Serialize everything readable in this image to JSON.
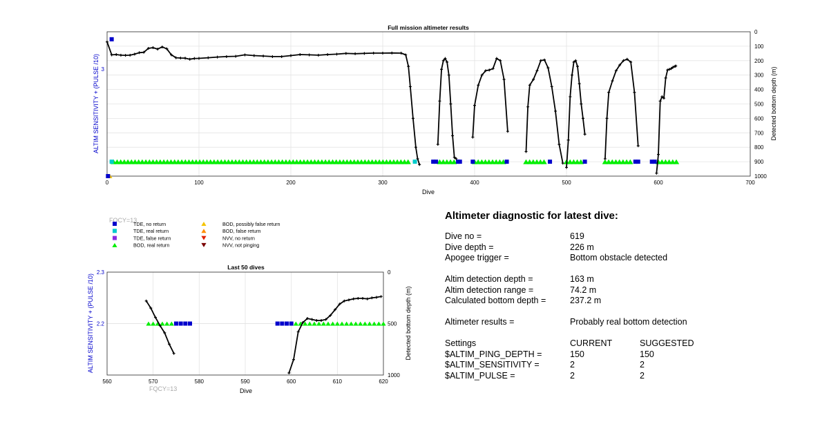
{
  "colors": {
    "axis_blue": "#0000cc",
    "tde_no_return": "#0000cc",
    "tde_real_return": "#00cccc",
    "tde_false_return": "#8a2be2",
    "bod_real_return": "#00ee00",
    "bod_possibly_false": "#f4c400",
    "bod_false_return": "#ff8c00",
    "nvv_no_return": "#e02000",
    "nvv_not_pinging": "#7a0000",
    "fqcy_text": "#a9a9a9"
  },
  "chart_data": [
    {
      "id": "full-mission",
      "type": "line",
      "title": "Full mission altimeter results",
      "xlabel": "Dive",
      "ylabel": "ALTIM SENSITIVITY + (PULSE /10)",
      "y2label": "Detected bottom depth (m)",
      "xlim": [
        0,
        700
      ],
      "ylim_right": [
        1000,
        0
      ],
      "xticks": [
        "0",
        "100",
        "200",
        "300",
        "400",
        "500",
        "600",
        "700"
      ],
      "yticks_left": [
        "3"
      ],
      "yticks_right": [
        "0",
        "100",
        "200",
        "300",
        "400",
        "500",
        "600",
        "700",
        "800",
        "900",
        "1000"
      ],
      "grid": true,
      "series": [
        {
          "role": "depth_segment",
          "x": [
            0,
            5,
            10,
            15,
            20,
            25,
            30,
            35,
            40,
            45,
            50,
            55,
            60,
            65,
            70,
            75,
            80,
            85,
            90,
            95,
            100,
            110,
            120,
            130,
            140,
            150,
            160,
            170,
            180,
            190,
            200,
            210,
            220,
            230,
            240,
            250,
            260,
            270,
            280,
            290,
            300,
            310,
            320,
            325,
            328,
            330,
            333,
            336,
            338,
            340
          ],
          "y": [
            70,
            160,
            158,
            162,
            163,
            162,
            155,
            145,
            142,
            115,
            110,
            120,
            105,
            118,
            160,
            180,
            182,
            183,
            190,
            185,
            184,
            180,
            175,
            172,
            170,
            160,
            165,
            168,
            172,
            172,
            165,
            158,
            160,
            162,
            158,
            155,
            150,
            152,
            150,
            148,
            148,
            147,
            148,
            160,
            240,
            380,
            600,
            800,
            880,
            920
          ]
        },
        {
          "role": "depth_segment",
          "x": [
            360,
            362,
            364,
            366,
            368,
            370,
            372,
            374,
            376,
            378,
            380
          ],
          "y": [
            780,
            480,
            260,
            200,
            185,
            210,
            300,
            500,
            720,
            870,
            880
          ]
        },
        {
          "role": "depth_segment",
          "x": [
            398,
            400,
            404,
            408,
            412,
            416,
            420,
            424,
            428,
            432,
            436
          ],
          "y": [
            730,
            510,
            370,
            300,
            270,
            265,
            255,
            185,
            200,
            330,
            690
          ]
        },
        {
          "role": "depth_segment",
          "x": [
            456,
            458,
            460,
            464,
            468,
            472,
            476,
            480,
            484,
            488,
            492,
            496
          ],
          "y": [
            830,
            520,
            370,
            330,
            270,
            200,
            195,
            250,
            380,
            550,
            780,
            910
          ]
        },
        {
          "role": "depth_segment",
          "x": [
            500,
            502,
            504,
            506,
            508,
            510,
            512,
            514,
            516,
            518,
            520
          ],
          "y": [
            940,
            750,
            450,
            300,
            210,
            200,
            240,
            360,
            500,
            600,
            710
          ]
        },
        {
          "role": "depth_segment",
          "x": [
            542,
            544,
            546,
            550,
            554,
            558,
            562,
            566,
            570,
            574,
            578
          ],
          "y": [
            880,
            600,
            420,
            340,
            270,
            230,
            200,
            190,
            210,
            420,
            790
          ]
        },
        {
          "role": "depth_segment",
          "x": [
            598,
            600,
            602,
            604,
            606,
            608,
            610,
            612,
            614,
            616,
            618,
            619
          ],
          "y": [
            980,
            850,
            480,
            450,
            460,
            320,
            265,
            260,
            255,
            245,
            240,
            237
          ]
        }
      ],
      "markers": [
        {
          "type": "TDE, no return",
          "x": [
            5
          ],
          "yval": 3.28
        },
        {
          "type": "BOD, possibly false return",
          "x": [
            3
          ],
          "yval": 2.0
        },
        {
          "type": "TDE, no return",
          "x": [
            1
          ],
          "yval": 2.0
        },
        {
          "type": "BOD, real return",
          "x_range": [
            7,
            330
          ],
          "depth": 900
        },
        {
          "type": "BOD, real return",
          "x_range": [
            362,
            380
          ],
          "depth": 900
        },
        {
          "type": "BOD, real return",
          "x_range": [
            400,
            432
          ],
          "depth": 900
        },
        {
          "type": "BOD, real return",
          "x_range": [
            456,
            478
          ],
          "depth": 900
        },
        {
          "type": "BOD, real return",
          "x_range": [
            500,
            518
          ],
          "depth": 900
        },
        {
          "type": "BOD, real return",
          "x_range": [
            542,
            572
          ],
          "depth": 900
        },
        {
          "type": "BOD, real return",
          "x_range": [
            600,
            620
          ],
          "depth": 900
        },
        {
          "type": "TDE, no return",
          "x": [
            355,
            358,
            382,
            384,
            398,
            435,
            482,
            520,
            575,
            578,
            593,
            596
          ],
          "depth": 900
        },
        {
          "type": "TDE, real return",
          "x": [
            5,
            335
          ],
          "depth": 900
        }
      ]
    },
    {
      "id": "last-50",
      "type": "line",
      "title": "Last 50 dives",
      "xlabel": "Dive",
      "ylabel": "ALTIM SENSITIVITY + (PULSE /10)",
      "y2label": "Detected bottom depth (m)",
      "xlim": [
        560,
        620
      ],
      "ylim": [
        2.1,
        2.3
      ],
      "ylim_right": [
        1000,
        0
      ],
      "xticks": [
        "560",
        "570",
        "580",
        "590",
        "600",
        "610",
        "620"
      ],
      "yticks_left": [
        "2.3",
        "2.2"
      ],
      "yticks_right": [
        "0",
        "500",
        "1000"
      ],
      "grid": true,
      "series": [
        {
          "role": "depth_segment",
          "x": [
            568.5,
            569.5,
            570.5,
            571.5,
            572.5,
            573.5,
            574.5
          ],
          "y": [
            280,
            350,
            440,
            520,
            590,
            700,
            790
          ]
        },
        {
          "role": "depth_segment",
          "x": [
            599.5,
            600.5,
            601.5,
            602.5,
            603.5,
            604.5,
            605.5,
            606.5,
            607.5,
            608.5,
            609.5,
            610.5,
            611.5,
            612.5,
            613.5,
            614.5,
            615.5,
            616.5,
            617.5,
            618.5,
            619.5
          ],
          "y": [
            980,
            850,
            580,
            490,
            450,
            460,
            470,
            470,
            460,
            420,
            365,
            310,
            280,
            270,
            260,
            255,
            255,
            260,
            250,
            245,
            237
          ]
        }
      ],
      "markers": [
        {
          "type": "BOD, real return",
          "x": [
            569,
            570,
            571,
            572,
            573,
            574
          ],
          "yval": 2.2
        },
        {
          "type": "TDE, no return",
          "x": [
            575,
            576,
            577,
            578
          ],
          "yval": 2.2
        },
        {
          "type": "TDE, no return",
          "x": [
            597,
            598,
            599,
            600
          ],
          "yval": 2.2
        },
        {
          "type": "BOD, real return",
          "x": [
            601,
            602,
            603,
            604,
            605,
            606,
            607,
            608,
            609,
            610,
            611,
            612,
            613,
            614,
            615,
            616,
            617,
            618,
            619,
            620
          ],
          "yval": 2.2
        }
      ]
    }
  ],
  "legend": {
    "fqcy": "FQCY=13",
    "items": [
      {
        "label": "TDE, no return",
        "shape": "square",
        "color": "#0000cc"
      },
      {
        "label": "TDE, real return",
        "shape": "square",
        "color": "#00cccc"
      },
      {
        "label": "TDE, false return",
        "shape": "square",
        "color": "#8a2be2"
      },
      {
        "label": "BOD, real return",
        "shape": "tri-up",
        "color": "#00ee00"
      },
      {
        "label": "BOD, possibly false return",
        "shape": "tri-up",
        "color": "#f4c400"
      },
      {
        "label": "BOD, false return",
        "shape": "tri-up",
        "color": "#ff8c00"
      },
      {
        "label": "NVV, no return",
        "shape": "tri-down",
        "color": "#e02000"
      },
      {
        "label": "NVV, not pinging",
        "shape": "tri-down",
        "color": "#7a0000"
      }
    ]
  },
  "bottom_fqcy": "FQCY=13",
  "diagnostic": {
    "title": "Altimeter diagnostic for latest dive:",
    "dive_no_label": "Dive no =",
    "dive_no": "619",
    "dive_depth_label": "Dive depth =",
    "dive_depth": "226 m",
    "apogee_label": "Apogee trigger =",
    "apogee": "Bottom obstacle detected",
    "det_depth_label": "Altim detection depth =",
    "det_depth": "163 m",
    "det_range_label": "Altim detection range =",
    "det_range": "74.2 m",
    "calc_depth_label": "Calculated bottom depth =",
    "calc_depth": "237.2 m",
    "results_label": "Altimeter results =",
    "results": "Probably real bottom detection",
    "settings_label": "Settings",
    "current_label": "CURRENT",
    "suggested_label": "SUGGESTED",
    "ping_label": "$ALTIM_PING_DEPTH =",
    "ping_current": "150",
    "ping_suggested": "150",
    "sens_label": "$ALTIM_SENSITIVITY =",
    "sens_current": "2",
    "sens_suggested": "2",
    "pulse_label": "$ALTIM_PULSE =",
    "pulse_current": "2",
    "pulse_suggested": "2"
  }
}
